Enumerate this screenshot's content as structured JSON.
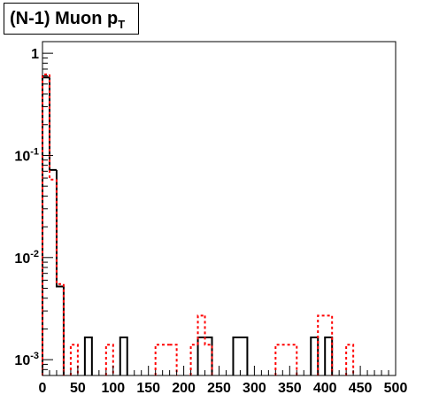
{
  "title": {
    "main": "(N-1) Muon p",
    "sub": "T"
  },
  "chart_data": {
    "type": "histogram",
    "title": "(N-1) Muon pT",
    "xlabel": "",
    "ylabel": "",
    "xlim": [
      0,
      500
    ],
    "ylim": [
      0.0007,
      1.3
    ],
    "y_scale": "log",
    "grid": false,
    "x_ticks": [
      "0",
      "50",
      "100",
      "150",
      "200",
      "250",
      "300",
      "350",
      "400",
      "450",
      "500"
    ],
    "y_ticks": [
      {
        "base": "1",
        "exp": ""
      },
      {
        "base": "10",
        "exp": "-1"
      },
      {
        "base": "10",
        "exp": "-2"
      },
      {
        "base": "10",
        "exp": "-3"
      }
    ],
    "bin_width": 10,
    "series": [
      {
        "color": "#000000",
        "style": "solid",
        "bins": [
          [
            0,
            10,
            0.58
          ],
          [
            10,
            20,
            0.072
          ],
          [
            20,
            30,
            0.0052
          ],
          [
            60,
            70,
            0.00165
          ],
          [
            110,
            120,
            0.00165
          ],
          [
            220,
            240,
            0.00165
          ],
          [
            270,
            290,
            0.00165
          ],
          [
            380,
            390,
            0.00165
          ],
          [
            400,
            410,
            0.00165
          ]
        ]
      },
      {
        "color": "#ff0000",
        "style": "dashed",
        "bins": [
          [
            0,
            10,
            0.62
          ],
          [
            10,
            20,
            0.058
          ],
          [
            20,
            30,
            0.0055
          ],
          [
            40,
            50,
            0.0014
          ],
          [
            90,
            100,
            0.0014
          ],
          [
            160,
            180,
            0.0014
          ],
          [
            180,
            190,
            0.0014
          ],
          [
            210,
            220,
            0.0014
          ],
          [
            220,
            230,
            0.0027
          ],
          [
            230,
            240,
            0.0014
          ],
          [
            330,
            360,
            0.0014
          ],
          [
            390,
            410,
            0.0027
          ],
          [
            430,
            440,
            0.0014
          ]
        ]
      }
    ]
  }
}
